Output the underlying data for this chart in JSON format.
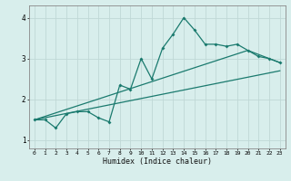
{
  "title": "",
  "xlabel": "Humidex (Indice chaleur)",
  "bg_color": "#d8eeec",
  "grid_color": "#c0d8d6",
  "line_color": "#1a7a6e",
  "xlim": [
    -0.5,
    23.5
  ],
  "ylim": [
    0.8,
    4.3
  ],
  "xticks": [
    0,
    1,
    2,
    3,
    4,
    5,
    6,
    7,
    8,
    9,
    10,
    11,
    12,
    13,
    14,
    15,
    16,
    17,
    18,
    19,
    20,
    21,
    22,
    23
  ],
  "yticks": [
    1,
    2,
    3,
    4
  ],
  "main_x": [
    0,
    1,
    2,
    3,
    4,
    5,
    6,
    7,
    8,
    9,
    10,
    11,
    12,
    13,
    14,
    15,
    16,
    17,
    18,
    19,
    20,
    21,
    22,
    23
  ],
  "main_y": [
    1.5,
    1.5,
    1.3,
    1.65,
    1.7,
    1.7,
    1.55,
    1.45,
    2.35,
    2.25,
    3.0,
    2.5,
    3.25,
    3.6,
    4.0,
    3.7,
    3.35,
    3.35,
    3.3,
    3.35,
    3.2,
    3.05,
    3.0,
    2.9
  ],
  "trend1_x": [
    0,
    23
  ],
  "trend1_y": [
    1.5,
    2.7
  ],
  "trend2_x": [
    0,
    20,
    23
  ],
  "trend2_y": [
    1.5,
    3.2,
    2.9
  ],
  "spine_color": "#888888"
}
